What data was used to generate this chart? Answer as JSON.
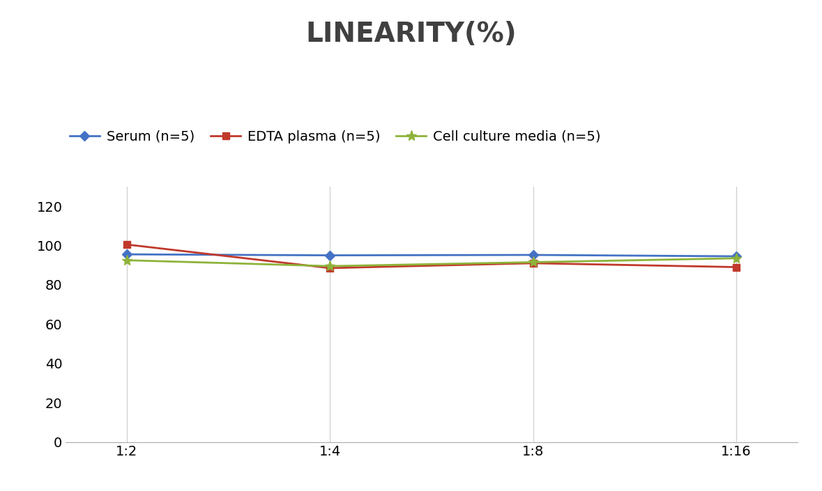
{
  "title": "LINEARITY(%)",
  "title_fontsize": 28,
  "title_fontweight": "bold",
  "title_color": "#404040",
  "x_labels": [
    "1:2",
    "1:4",
    "1:8",
    "1:16"
  ],
  "x_positions": [
    0,
    1,
    2,
    3
  ],
  "series": [
    {
      "label": "Serum (n=5)",
      "values": [
        95.5,
        95.0,
        95.2,
        94.5
      ],
      "color": "#4472C4",
      "marker": "D",
      "marker_size": 7,
      "linewidth": 2.0
    },
    {
      "label": "EDTA plasma (n=5)",
      "values": [
        100.5,
        88.5,
        91.0,
        89.0
      ],
      "color": "#C0392B",
      "marker": "s",
      "marker_size": 7,
      "linewidth": 2.0
    },
    {
      "label": "Cell culture media (n=5)",
      "values": [
        92.5,
        89.5,
        91.5,
        93.5
      ],
      "color": "#8DB33A",
      "marker": "*",
      "marker_size": 11,
      "linewidth": 2.0
    }
  ],
  "ylim": [
    0,
    130
  ],
  "yticks": [
    0,
    20,
    40,
    60,
    80,
    100,
    120
  ],
  "grid_color": "#D3D3D3",
  "background_color": "#FFFFFF",
  "legend_fontsize": 14,
  "tick_fontsize": 14
}
